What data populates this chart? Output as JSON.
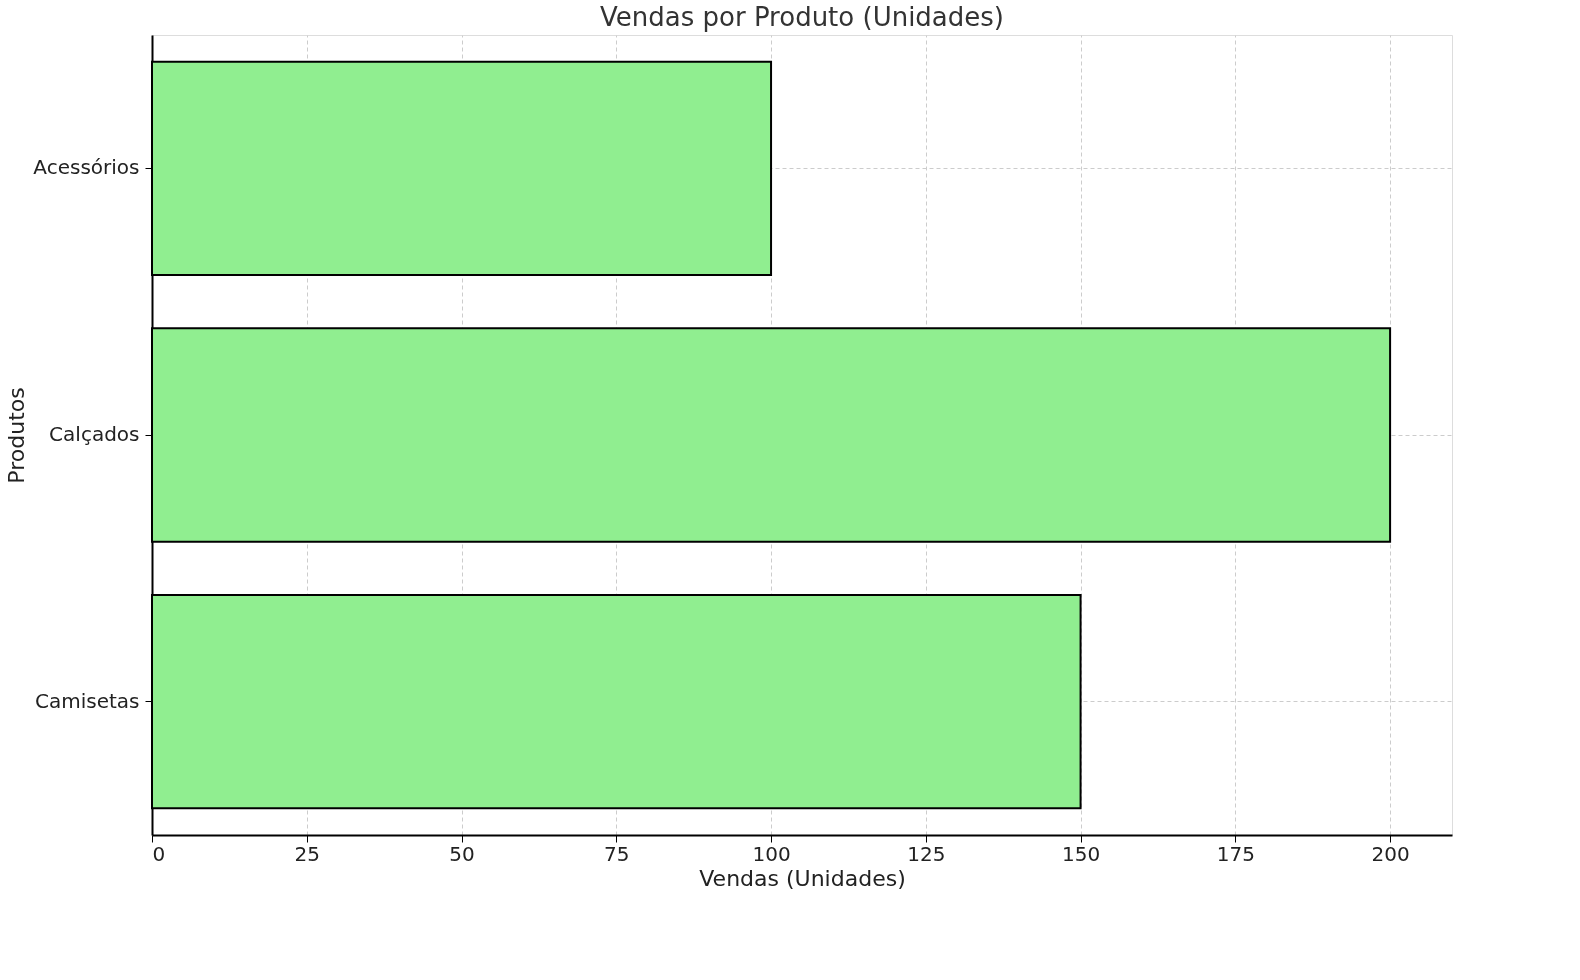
{
  "chart_data": {
    "type": "bar",
    "orientation": "horizontal",
    "title": "Vendas por Produto (Unidades)",
    "xlabel": "Vendas (Unidades)",
    "ylabel": "Produtos",
    "categories": [
      "Acessórios",
      "Calçados",
      "Camisetas"
    ],
    "values": [
      100,
      200,
      150
    ],
    "color": "#90ee90",
    "xlim": [
      0,
      210
    ],
    "xticks": [
      0,
      25,
      50,
      75,
      100,
      125,
      150,
      175,
      200
    ],
    "grid": true,
    "line_style": "dashed"
  }
}
